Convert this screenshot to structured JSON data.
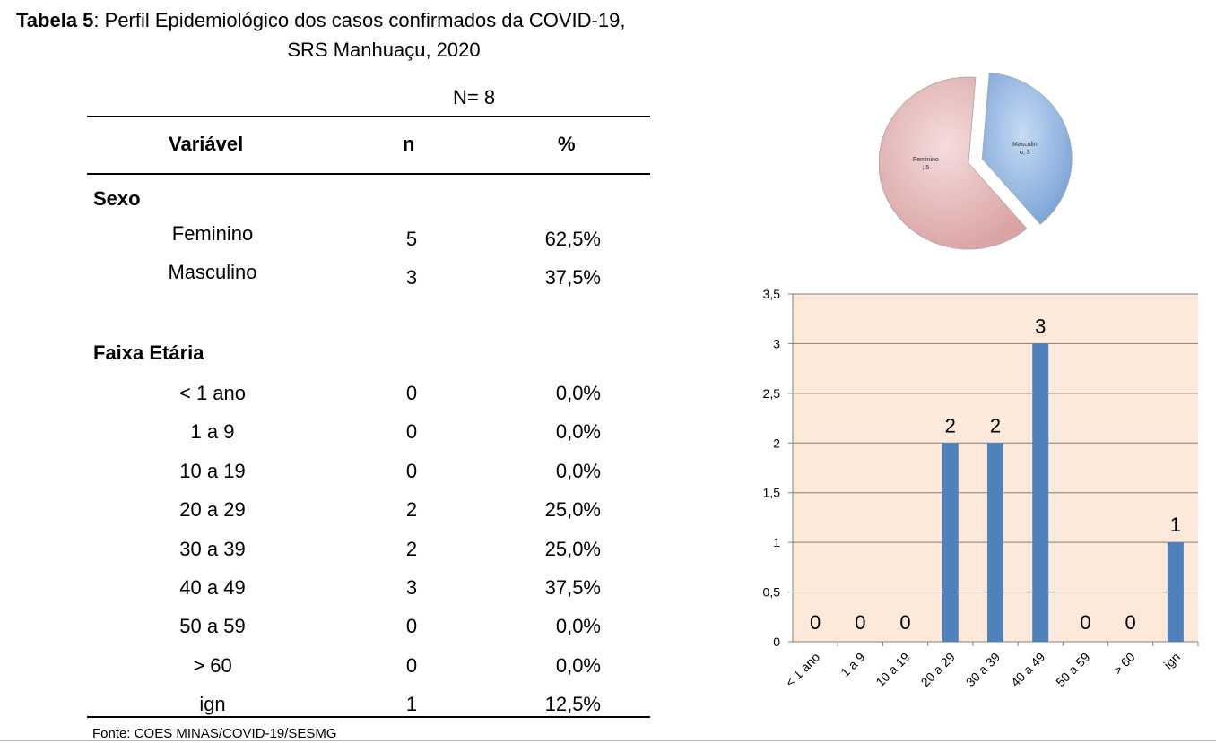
{
  "title": {
    "bold_part": "Tabela 5",
    "rest_line1": ": Perfil Epidemiológico dos casos confirmados da COVID-19,",
    "line2": "SRS Manhuaçu, 2020"
  },
  "n_label": "N=  8",
  "table": {
    "headers": [
      "Variável",
      "n",
      "%"
    ],
    "sexo": {
      "label": "Sexo",
      "rows": [
        {
          "label": "Feminino",
          "n": "5",
          "pct": "62,5%"
        },
        {
          "label": "Masculino",
          "n": "3",
          "pct": "37,5%"
        }
      ]
    },
    "faixa": {
      "label": "Faixa Etária",
      "rows": [
        {
          "label": "< 1 ano",
          "n": "0",
          "pct": "0,0%"
        },
        {
          "label": "1 a 9",
          "n": "0",
          "pct": "0,0%"
        },
        {
          "label": "10 a 19",
          "n": "0",
          "pct": "0,0%"
        },
        {
          "label": "20 a 29",
          "n": "2",
          "pct": "25,0%"
        },
        {
          "label": "30 a 39",
          "n": "2",
          "pct": "25,0%"
        },
        {
          "label": "40 a 49",
          "n": "3",
          "pct": "37,5%"
        },
        {
          "label": "50 a 59",
          "n": "0",
          "pct": "0,0%"
        },
        {
          "label": "> 60",
          "n": "0",
          "pct": "0,0%"
        },
        {
          "label": "ign",
          "n": "1",
          "pct": "12,5%"
        }
      ]
    }
  },
  "source": "Fonte: COES MINAS/COVID-19/SESMG",
  "chart_data": [
    {
      "type": "pie",
      "labels": [
        "Feminino",
        "Masculino"
      ],
      "slice_labels": [
        "Feminino\n; 5",
        "Masculin\no; 3"
      ],
      "values": [
        5,
        3
      ],
      "colors": [
        "#e6b9b8",
        "#95b3d7"
      ]
    },
    {
      "type": "bar",
      "categories": [
        "< 1 ano",
        "1 a 9",
        "10 a 19",
        "20 a 29",
        "30 a 39",
        "40 a 49",
        "50 a 59",
        "> 60",
        "ign"
      ],
      "values": [
        0,
        0,
        0,
        2,
        2,
        3,
        0,
        0,
        1
      ],
      "ylim": [
        0,
        3.5
      ],
      "yticks": [
        "0",
        "0,5",
        "1",
        "1,5",
        "2",
        "2,5",
        "3",
        "3,5"
      ],
      "grid": true,
      "bar_color": "#4f81bd",
      "plot_background": "#fde9d9"
    }
  ]
}
